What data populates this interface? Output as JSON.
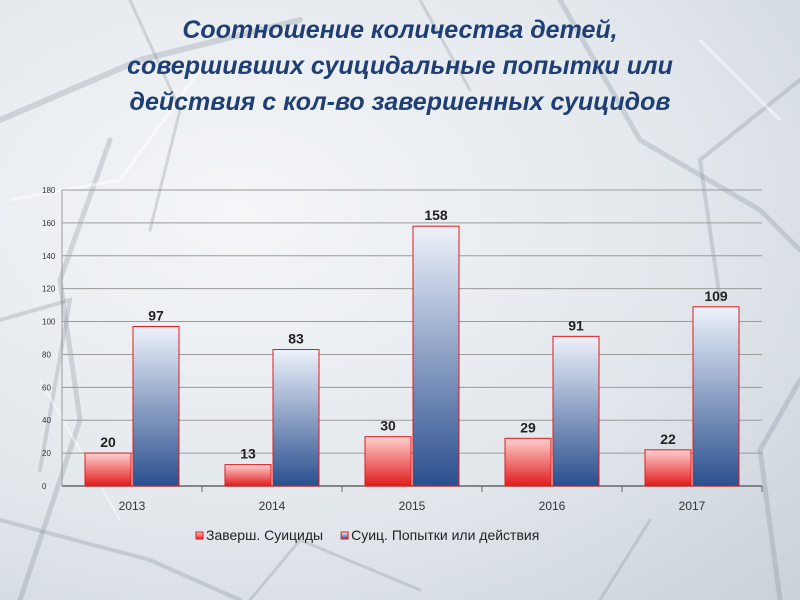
{
  "title_lines": [
    "Соотношение количества детей,",
    "совершивших суицидальные попытки или",
    "действия с кол-во завершенных суицидов"
  ],
  "colors": {
    "series1_light": "#ffd0d0",
    "series1_dark": "#e01b1b",
    "series2_light": "#eef2fb",
    "series2_dark": "#2a4f8e",
    "grid": "#9a9a9a",
    "title": "#1f3f74"
  },
  "chart_data": {
    "type": "bar",
    "title": "Соотношение количества детей, совершивших суицидальные попытки или действия с кол-во завершенных суицидов",
    "categories": [
      "2013",
      "2014",
      "2015",
      "2016",
      "2017"
    ],
    "series": [
      {
        "name": "Заверш. Суициды",
        "values": [
          20,
          13,
          30,
          29,
          22
        ]
      },
      {
        "name": "Суиц. Попытки или действия",
        "values": [
          97,
          83,
          158,
          91,
          109
        ]
      }
    ],
    "ylim": [
      0,
      180
    ],
    "yticks": [
      "0",
      "20",
      "40",
      "60",
      "80",
      "100",
      "120",
      "140",
      "160",
      "180"
    ],
    "grid": true,
    "legend_position": "bottom",
    "data_labels": true
  }
}
